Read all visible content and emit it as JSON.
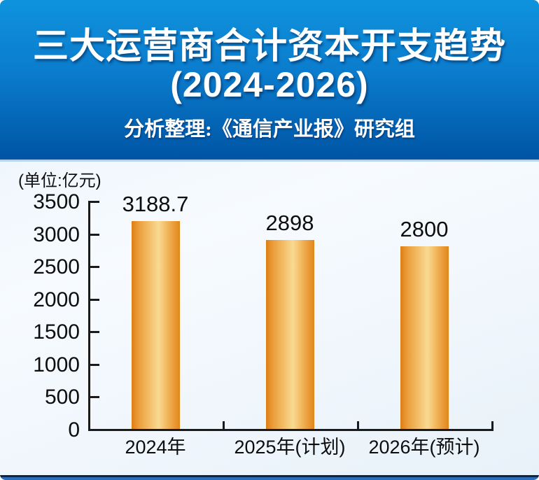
{
  "header": {
    "title_line1": "三大运营商合计资本开支趋势",
    "title_line2": "(2024-2026)",
    "subtitle": "分析整理:《通信产业报》研究组"
  },
  "chart_data": {
    "type": "bar",
    "title": "三大运营商合计资本开支趋势(2024-2026)",
    "unit_label": "(单位:亿元)",
    "categories": [
      "2024年",
      "2025年(计划)",
      "2026年(预计)"
    ],
    "values": [
      3188.7,
      2898,
      2800
    ],
    "ylim": [
      0,
      3500
    ],
    "yticks": [
      0,
      500,
      1000,
      1500,
      2000,
      2500,
      3000,
      3500
    ],
    "grid": false,
    "legend": "none",
    "xlabel": "",
    "ylabel": "亿元"
  },
  "colors": {
    "header_gradient_top": "#0f93dd",
    "header_gradient_bottom": "#0054a4",
    "header_text": "#ffffff",
    "chart_background": "#eef5fc",
    "bar_edge": "#de7e16",
    "bar_highlight": "#f9da92",
    "axis": "#1a1a1a",
    "text": "#0d0d0d",
    "bottom_strip_dark": "#12233f",
    "bottom_strip_blue": "#2e6db6"
  }
}
